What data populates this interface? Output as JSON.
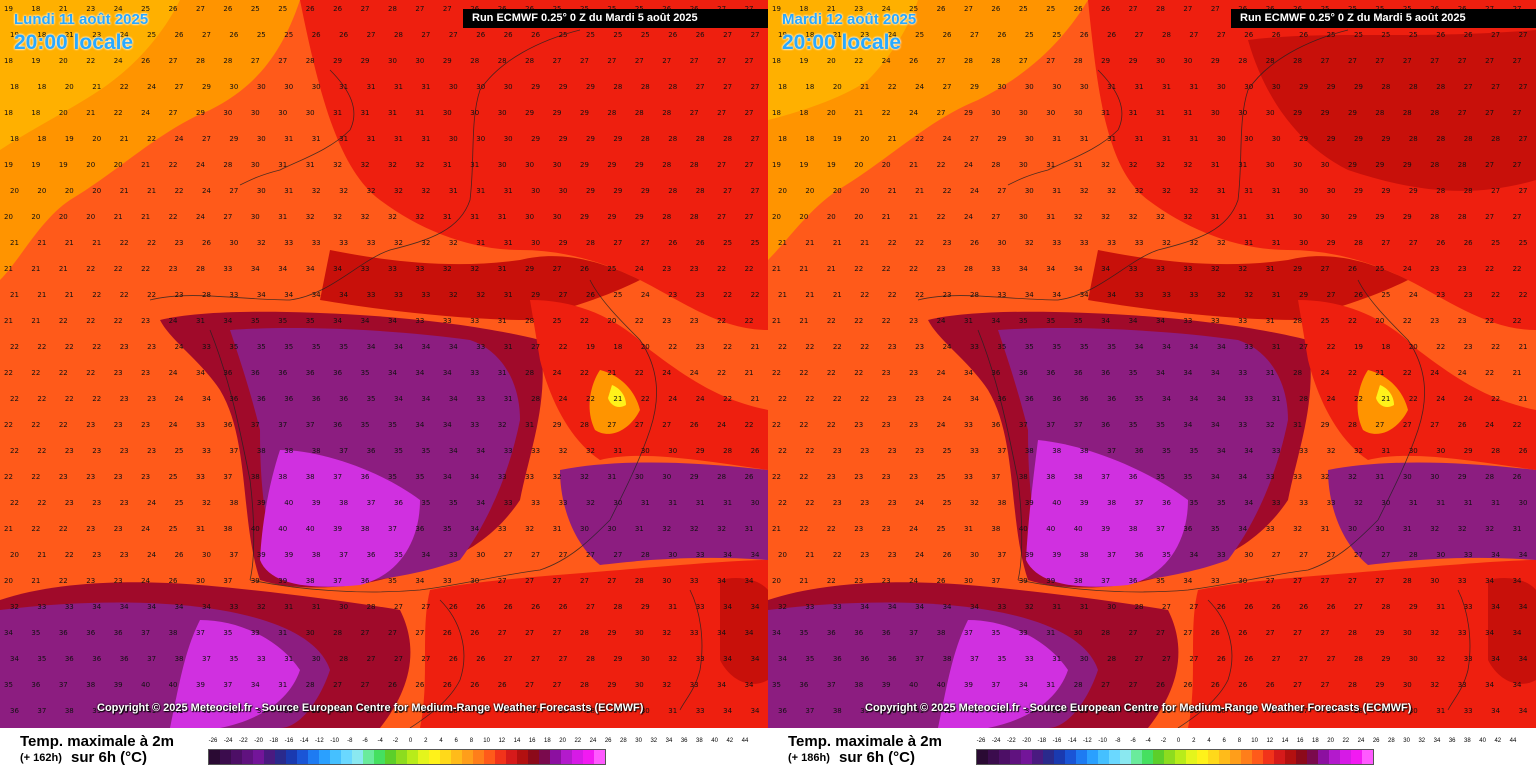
{
  "panels": [
    {
      "date": "Lundi 11 août 2025",
      "hour": "20:00 locale",
      "run": "Run ECMWF 0.25° 0 Z du Mardi 5 août 2025",
      "copyright": "Copyright © 2025 Meteociel.fr - Source European Centre for Medium-Range Weather Forecasts (ECMWF)",
      "title": "Temp. maximale à 2m",
      "hours": "(+ 162h)",
      "unit": "sur 6h (°C)"
    },
    {
      "date": "Mardi 12 août 2025",
      "hour": "20:00 locale",
      "run": "Run ECMWF 0.25° 0 Z du Mardi 5 août 2025",
      "copyright": "Copyright © 2025 Meteociel.fr - Source European Centre for Medium-Range Weather Forecasts (ECMWF)",
      "title": "Temp. maximale à 2m",
      "hours": "(+ 186h)",
      "unit": "sur 6h (°C)"
    }
  ],
  "legend": {
    "values": [
      "-26",
      "-24",
      "-22",
      "-20",
      "-18",
      "-16",
      "-14",
      "-12",
      "-10",
      "-8",
      "-6",
      "-4",
      "-2",
      "0",
      "2",
      "4",
      "6",
      "8",
      "10",
      "12",
      "14",
      "16",
      "18",
      "20",
      "22",
      "24",
      "26",
      "28",
      "30",
      "32",
      "34",
      "36",
      "38",
      "40",
      "42",
      "44"
    ],
    "colors": [
      "#2a0a33",
      "#3b0c4d",
      "#4d0f66",
      "#60127f",
      "#731599",
      "#4a1a80",
      "#2a2a8c",
      "#1a3ab0",
      "#1a55d6",
      "#1e7bf2",
      "#2aa0ff",
      "#45c0ff",
      "#6ad8ff",
      "#8ae8f0",
      "#6aeb9c",
      "#45e060",
      "#5ccf2a",
      "#8ddc1f",
      "#b8ec1a",
      "#e4f51c",
      "#fff21a",
      "#ffd91a",
      "#ffbb1a",
      "#ff9e1a",
      "#ff7e1a",
      "#ff5a1a",
      "#f2331a",
      "#d61a1a",
      "#b31010",
      "#8c0a1a",
      "#7a0a4d",
      "#8c10a0",
      "#b31acc",
      "#d61ae6",
      "#f21af2",
      "#ff5aff"
    ]
  },
  "map": {
    "colors": {
      "orange": "#ff9400",
      "light_orange": "#ffb000",
      "red_orange": "#ff5a1a",
      "red": "#ee1f0f",
      "dark_red": "#c8100a",
      "maroon": "#a00a2a",
      "purple": "#8c1d80",
      "magenta": "#d030e0"
    },
    "temperature_grid": [
      "19 18 21 23 24 25 26 27 26 25 25 26 26 27 28 27 27 26 26 26 25 25 25 25 26 26 27 27",
      "18 19 20 22 24 26 27 28 28 27 27 28 29 29 30 30 29 28 28 28 27 27 27 27 27 27 27 27",
      "18 18 20 21 22 24 27 29 30 30 30 30 31 31 31 31 30 30 30 29 29 29 28 28 28 27 27 27",
      "18 18 19 20 21 22 24 27 29 30 31 31 31 31 31 31 30 30 30 29 29 29 29 28 28 28 28 27",
      "19 19 19 20 20 21 22 24 28 30 31 31 32 32 32 32 31 31 30 30 30 29 29 29 28 28 27 27",
      "20 20 20 20 21 21 22 24 27 30 31 32 32 32 32 32 31 31 31 30 30 29 29 29 28 28 27 27",
      "21 21 21 21 22 22 23 26 30 32 33 33 33 33 32 32 32 31 31 30 29 28 27 27 26 26 25 25",
      "21 21 21 22 22 22 23 28 33 34 34 34 34 33 33 33 32 32 31 29 27 26 25 24 23 23 22 22",
      "21 21 22 22 22 23 24 31 34 35 35 35 34 34 34 33 33 33 31 28 25 22 20 22 23 23 22 22",
      "22 22 22 22 23 23 24 33 35 35 35 35 35 34 34 34 34 33 31 27 22 19 18 20 22 23 22 21",
      "22 22 22 22 23 23 24 34 36 36 36 36 36 35 34 34 34 33 31 28 24 22 21 22 24 24 22 21",
      "22 22 22 23 23 23 24 33 36 37 37 37 36 35 35 34 34 33 32 31 29 28 27 27 27 26 24 22",
      "22 22 23 23 23 23 25 33 37 38 38 38 37 36 35 35 34 34 33 33 32 32 31 30 30 29 28 26",
      "22 22 23 23 23 24 25 32 38 39 40 39 38 37 36 35 35 34 33 33 33 32 30 31 31 31 31 30",
      "21 22 22 23 23 24 25 31 38 40 40 40 39 38 37 36 35 34 33 32 31 30 30 31 32 32 32 31",
      "20 21 22 23 23 24 26 30 37 39 39 38 37 36 35 34 33 30 27 27 27 27 27 28 30 33 34 34",
      "32 33 33 34 34 34 34 34 33 32 31 31 30 28 27 27 26 26 26 26 26 27 28 29 31 33 34 34",
      "34 35 36 36 36 37 38 37 35 33 31 30 28 27 27 27 26 26 27 27 27 28 29 30 32 33 34 34",
      "35 36 37 38 39 40 40 39 37 34 31 28 27 27 26 26 26 26 26 27 27 28 29 30 32 33 34 34",
      "36 37 38 39 40 41 41 40 38 35 32 29 27 27 26 26 26 26 27 27 28 28 29 30 31 33 34 34"
    ]
  }
}
